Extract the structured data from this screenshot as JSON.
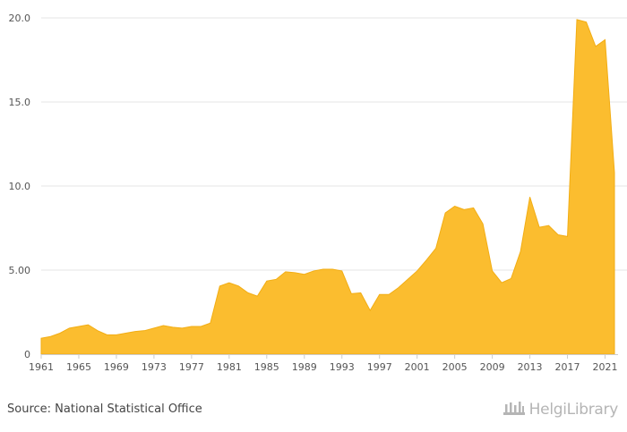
{
  "colors": {
    "area_fill": "#fbbd2f",
    "area_stroke": "#f2ad14",
    "grid": "#e6e6e6",
    "axis": "#cccccc",
    "text": "#555555"
  },
  "footer": {
    "source": "Source: National Statistical Office",
    "logo_text": "HelgiLibrary",
    "logo_icon": "helgi-library-logo-icon"
  },
  "chart_data": {
    "type": "area",
    "title": "",
    "xlabel": "",
    "ylabel": "",
    "ylim": [
      0,
      20
    ],
    "xlim": [
      1961,
      2022
    ],
    "grid": true,
    "legend": "none",
    "y_ticks": [
      {
        "value": 0,
        "label": "0"
      },
      {
        "value": 5,
        "label": "5.00"
      },
      {
        "value": 10,
        "label": "10.0"
      },
      {
        "value": 15,
        "label": "15.0"
      },
      {
        "value": 20,
        "label": "20.0"
      }
    ],
    "x_ticks": [
      1961,
      1965,
      1969,
      1973,
      1977,
      1981,
      1985,
      1989,
      1993,
      1997,
      2001,
      2005,
      2009,
      2013,
      2017,
      2021
    ],
    "x": [
      1961,
      1962,
      1963,
      1964,
      1965,
      1966,
      1967,
      1968,
      1969,
      1970,
      1971,
      1972,
      1973,
      1974,
      1975,
      1976,
      1977,
      1978,
      1979,
      1980,
      1981,
      1982,
      1983,
      1984,
      1985,
      1986,
      1987,
      1988,
      1989,
      1990,
      1991,
      1992,
      1993,
      1994,
      1995,
      1996,
      1997,
      1998,
      1999,
      2000,
      2001,
      2002,
      2003,
      2004,
      2005,
      2006,
      2007,
      2008,
      2009,
      2010,
      2011,
      2012,
      2013,
      2014,
      2015,
      2016,
      2017,
      2018,
      2019,
      2020,
      2021,
      2022
    ],
    "values": [
      0.95,
      1.05,
      1.25,
      1.55,
      1.65,
      1.75,
      1.4,
      1.15,
      1.15,
      1.25,
      1.35,
      1.4,
      1.55,
      1.7,
      1.6,
      1.55,
      1.65,
      1.65,
      1.85,
      4.05,
      4.25,
      4.05,
      3.65,
      3.45,
      4.35,
      4.45,
      4.9,
      4.85,
      4.75,
      4.95,
      5.05,
      5.05,
      4.95,
      3.6,
      3.65,
      2.6,
      3.55,
      3.55,
      3.95,
      4.45,
      4.95,
      5.6,
      6.3,
      8.4,
      8.8,
      8.6,
      8.7,
      7.75,
      4.95,
      4.25,
      4.5,
      6.1,
      9.35,
      7.55,
      7.65,
      7.1,
      7.0,
      19.9,
      19.75,
      18.3,
      18.7,
      10.8
    ]
  }
}
